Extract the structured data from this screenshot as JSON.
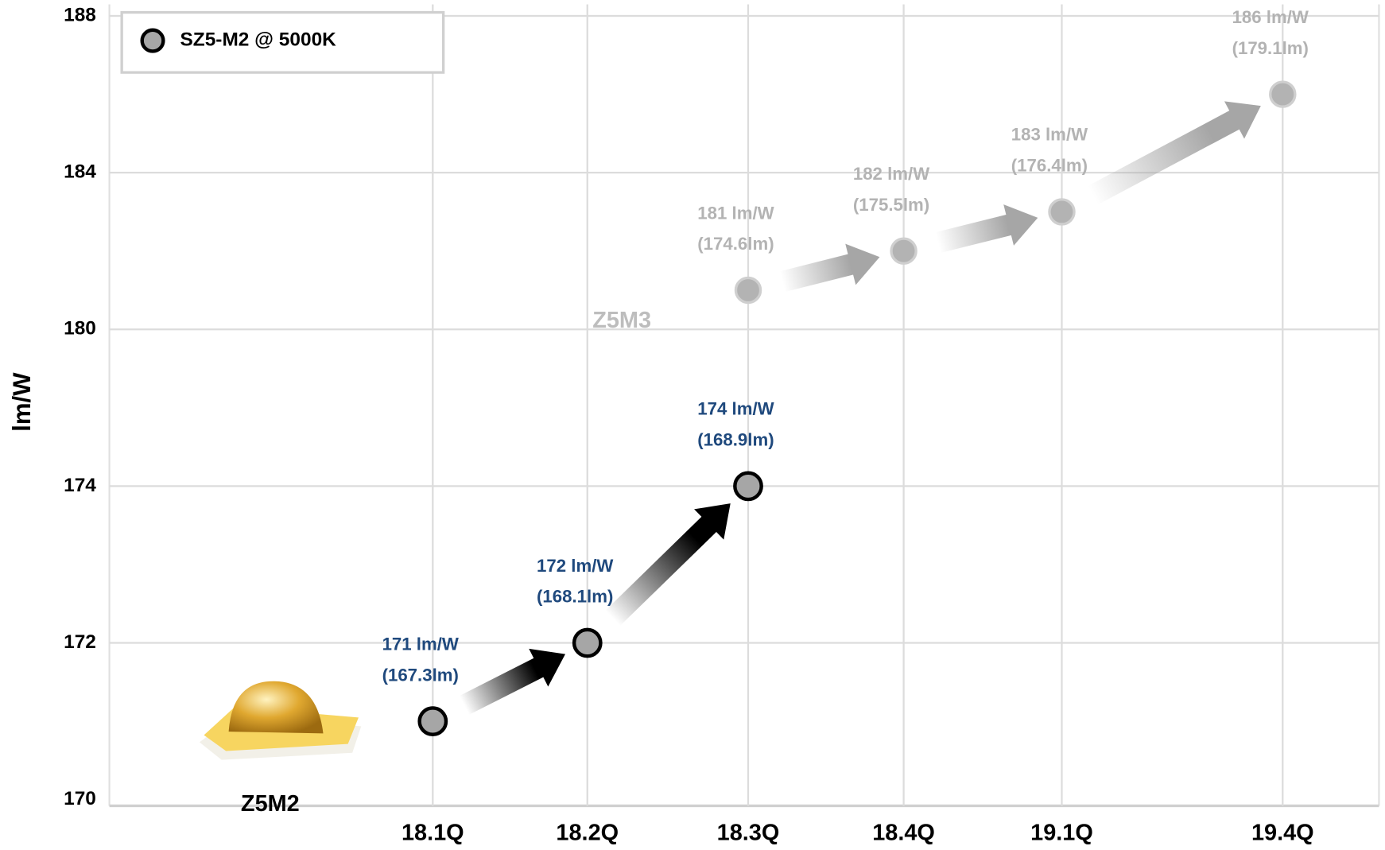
{
  "chart_data": {
    "type": "scatter",
    "y_label": "lm/W",
    "categories": [
      "18.1Q",
      "18.2Q",
      "18.3Q",
      "18.4Q",
      "19.1Q",
      "19.4Q"
    ],
    "ylim": [
      170,
      188
    ],
    "yticks": [
      170,
      172,
      174,
      180,
      184,
      188
    ],
    "grid": true,
    "legend": {
      "label": "SZ5-M2 @ 5000K",
      "position": "upper left"
    },
    "series": [
      {
        "name": "Z5M2",
        "color": "#a6a6a6",
        "label_color": "#1f497d",
        "values": [
          171,
          172,
          174,
          null,
          null,
          null
        ],
        "value_labels": [
          "171 lm/W",
          "172 lm/W",
          "174 lm/W",
          null,
          null,
          null
        ],
        "lumen_labels": [
          "(167.3lm)",
          "(168.1lm)",
          "(168.9lm)",
          null,
          null,
          null
        ]
      },
      {
        "name": "Z5M3",
        "color": "#b3b3b3",
        "label_color": "#b3b3b3",
        "values": [
          null,
          null,
          181,
          182,
          183,
          186
        ],
        "value_labels": [
          null,
          null,
          "181 lm/W",
          "182 lm/W",
          "183 lm/W",
          "186 lm/W"
        ],
        "lumen_labels": [
          null,
          null,
          "(174.6lm)",
          "(175.5lm)",
          "(176.4lm)",
          "(179.1lm)"
        ]
      }
    ]
  }
}
